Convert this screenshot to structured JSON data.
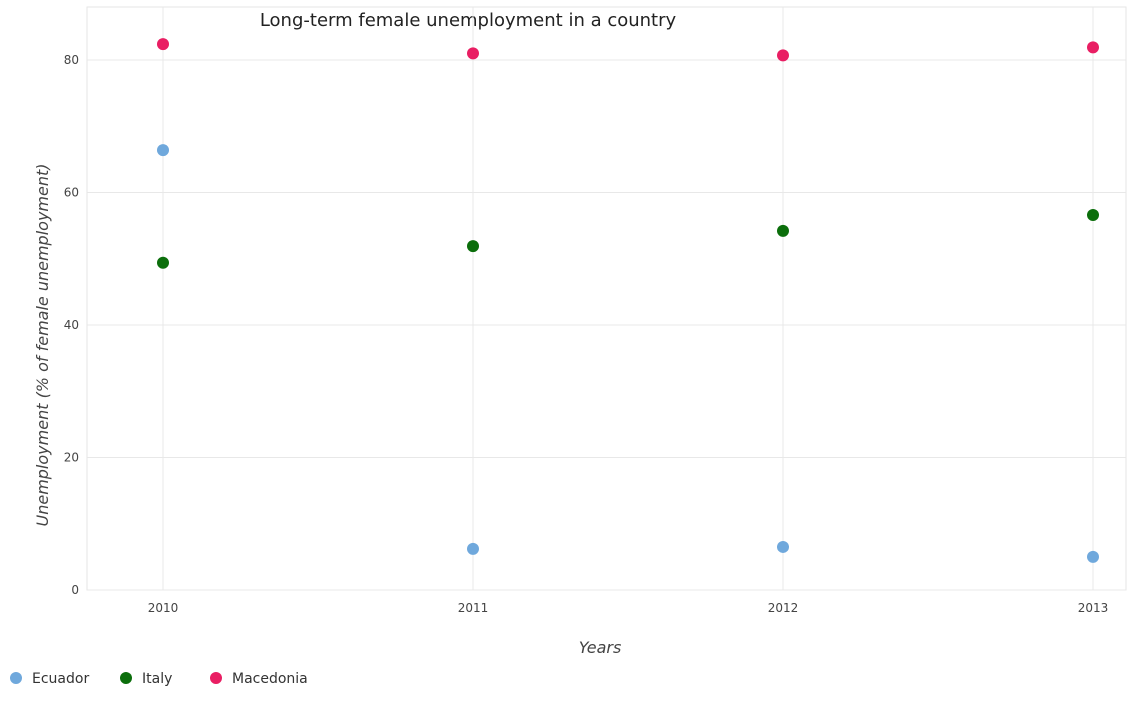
{
  "chart_data": {
    "type": "scatter",
    "title": "Long-term female unemployment in a country",
    "xlabel": "Years",
    "ylabel": "Unemployment (% of female unemployment)",
    "categories": [
      "2010",
      "2011",
      "2012",
      "2013"
    ],
    "ylim": [
      0,
      88
    ],
    "yticks": [
      0,
      20,
      40,
      60,
      80
    ],
    "grid": true,
    "legend_position": "bottom-left",
    "series": [
      {
        "name": "Ecuador",
        "color": "#6fa8dc",
        "values": [
          66.4,
          6.2,
          6.5,
          5.0
        ]
      },
      {
        "name": "Italy",
        "color": "#0b6e0b",
        "values": [
          49.4,
          51.9,
          54.2,
          56.6
        ]
      },
      {
        "name": "Macedonia",
        "color": "#e91e63",
        "values": [
          82.4,
          81.0,
          80.7,
          81.9
        ]
      }
    ]
  }
}
